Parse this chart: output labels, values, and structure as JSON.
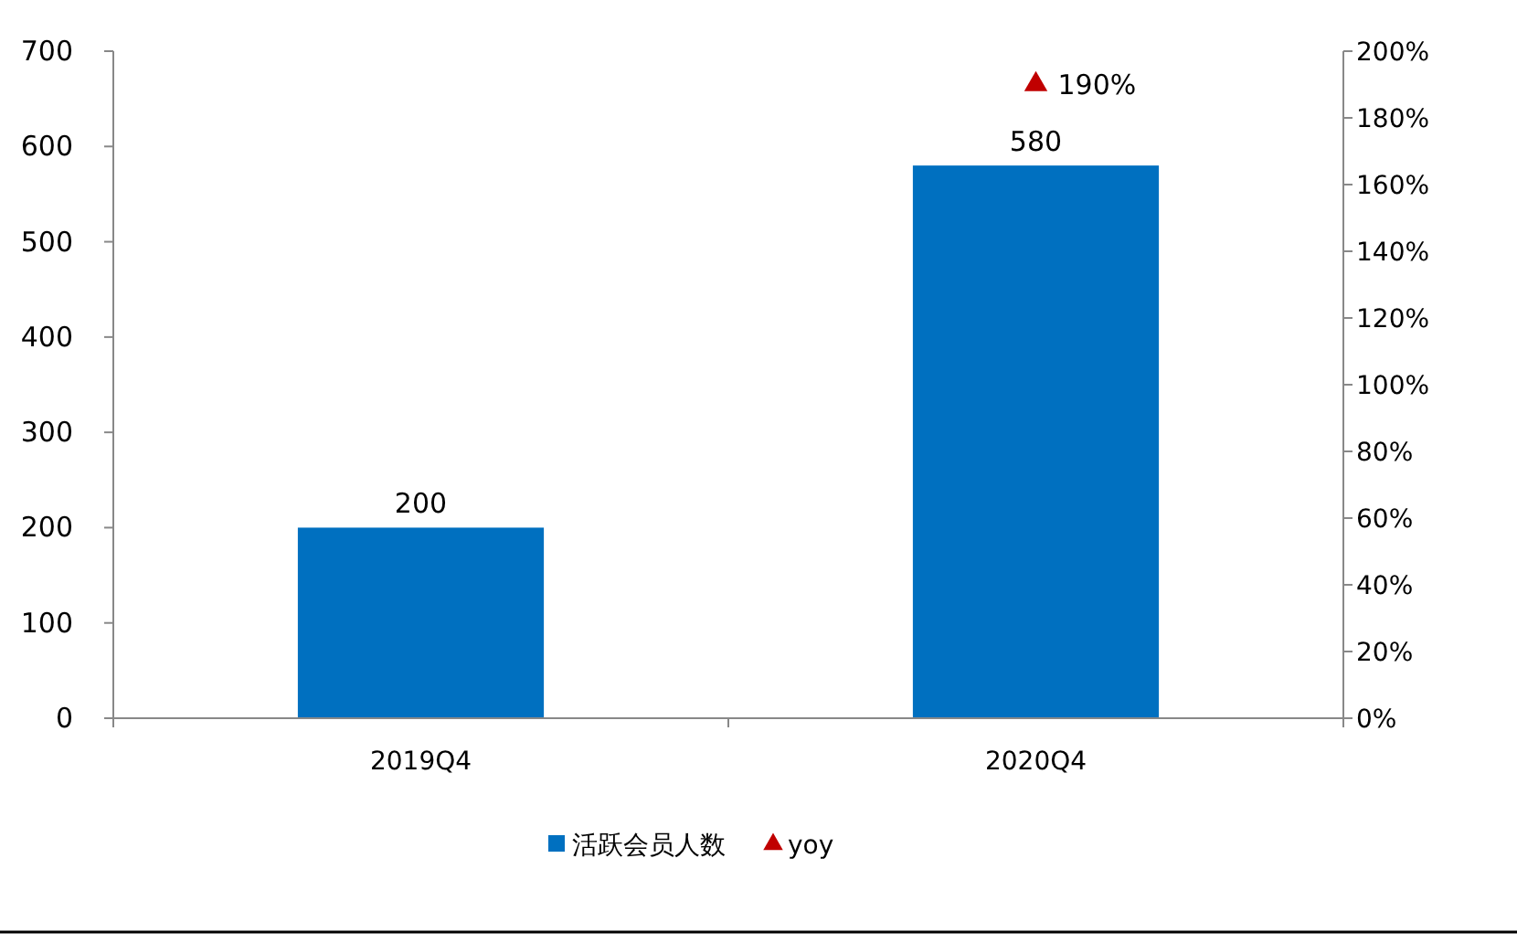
{
  "chart_data": {
    "type": "bar",
    "categories": [
      "2019Q4",
      "2020Q4"
    ],
    "series": [
      {
        "name": "活跃会员人数",
        "color": "#0070c0",
        "values": [
          200,
          580
        ],
        "value_labels": [
          "200",
          "580"
        ]
      },
      {
        "name": "yoy",
        "type": "scatter",
        "axis": "y2",
        "marker": "triangle",
        "color": "#c00000",
        "values": [
          null,
          190
        ],
        "value_labels": [
          null,
          "190%"
        ]
      }
    ],
    "ylim": [
      0,
      700
    ],
    "yticks": [
      0,
      100,
      200,
      300,
      400,
      500,
      600,
      700
    ],
    "y2lim": [
      0,
      200
    ],
    "y2ticks": [
      {
        "value": 0,
        "label": "0%"
      },
      {
        "value": 20,
        "label": "20%"
      },
      {
        "value": 40,
        "label": "40%"
      },
      {
        "value": 60,
        "label": "60%"
      },
      {
        "value": 80,
        "label": "80%"
      },
      {
        "value": 100,
        "label": "100%"
      },
      {
        "value": 120,
        "label": "120%"
      },
      {
        "value": 140,
        "label": "140%"
      },
      {
        "value": 160,
        "label": "160%"
      },
      {
        "value": 180,
        "label": "180%"
      },
      {
        "value": 200,
        "label": "200%"
      }
    ],
    "grid": false,
    "legend": "bottom"
  }
}
